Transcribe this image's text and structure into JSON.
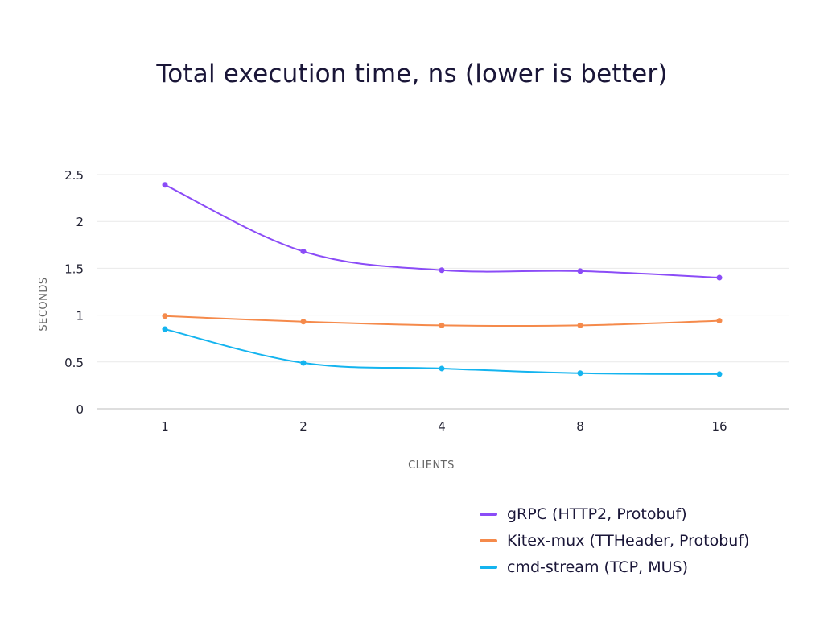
{
  "chart_data": {
    "type": "line",
    "title": "Total execution time, ns  (lower is better)",
    "xlabel": "CLIENTS",
    "ylabel": "SECONDS",
    "categories": [
      "1",
      "2",
      "4",
      "8",
      "16"
    ],
    "ylim": [
      0,
      2.5
    ],
    "yticks": [
      "0",
      "0.5",
      "1",
      "1.5",
      "2",
      "2.5"
    ],
    "grid": true,
    "legend_position": "bottom-right",
    "series": [
      {
        "name": "gRPC (HTTP2, Protobuf)",
        "color": "#8b4cf7",
        "values": [
          2.39,
          1.68,
          1.48,
          1.47,
          1.4
        ]
      },
      {
        "name": "Kitex-mux (TTHeader, Protobuf)",
        "color": "#f58a4b",
        "values": [
          0.99,
          0.93,
          0.89,
          0.89,
          0.94
        ]
      },
      {
        "name": "cmd-stream (TCP, MUS)",
        "color": "#14b4ef",
        "values": [
          0.85,
          0.49,
          0.43,
          0.38,
          0.37
        ]
      }
    ]
  }
}
